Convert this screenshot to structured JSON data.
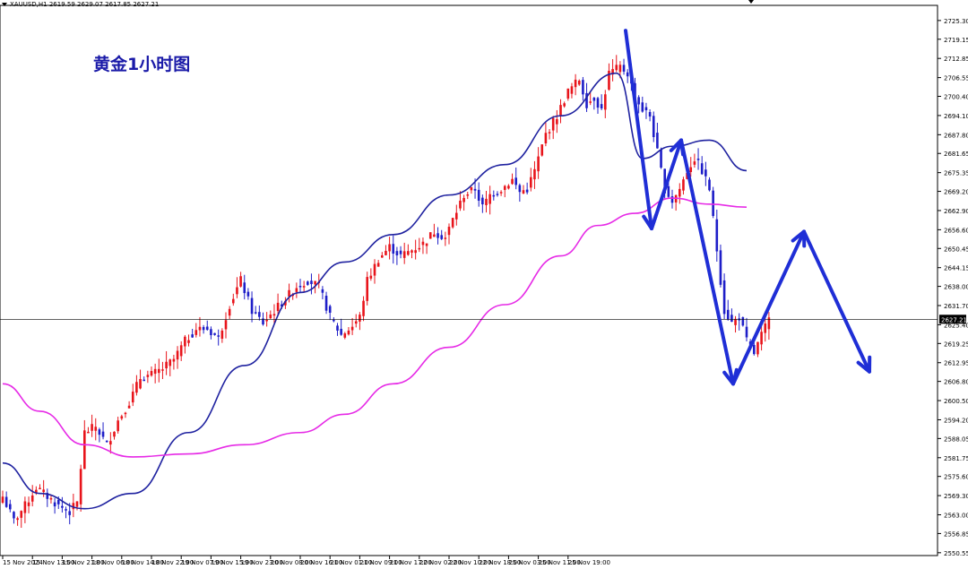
{
  "header": {
    "symbol_info": "XAUUSD,H1  2619.59 2629.07 2617.85 2627.21"
  },
  "annotation": {
    "title": "黄金1小时图"
  },
  "price_label": "2627.21",
  "colors": {
    "bull": "#e8141b",
    "bear": "#1e1ec8",
    "ma_fast": "#1f22a0",
    "ma_slow": "#e62ae6",
    "arrow": "#1f2ed6",
    "grid": "#000000"
  },
  "chart_data": {
    "type": "candlestick",
    "title": "黄金1小时图",
    "ylim": [
      2550.5,
      2728.5
    ],
    "y_ticks": [
      "2725.30",
      "2719.15",
      "2712.85",
      "2706.55",
      "2700.40",
      "2694.10",
      "2687.80",
      "2681.65",
      "2675.35",
      "2669.20",
      "2662.90",
      "2656.60",
      "2650.45",
      "2644.15",
      "2638.00",
      "2631.70",
      "2625.40",
      "2619.25",
      "2612.95",
      "2606.80",
      "2600.50",
      "2594.20",
      "2588.05",
      "2581.75",
      "2575.60",
      "2569.30",
      "2563.00",
      "2556.85",
      "2550.55"
    ],
    "x_ticks": [
      "15 Nov 2024",
      "15 Nov 13:00",
      "15 Nov 21:00",
      "18 Nov 06:00",
      "18 Nov 14:00",
      "18 Nov 22:00",
      "19 Nov 07:00",
      "19 Nov 15:00",
      "19 Nov 23:00",
      "20 Nov 08:00",
      "20 Nov 16:00",
      "21 Nov 01:00",
      "21 Nov 09:00",
      "21 Nov 17:00",
      "22 Nov 02:00",
      "22 Nov 10:00",
      "22 Nov 18:00",
      "25 Nov 03:00",
      "25 Nov 11:00",
      "25 Nov 19:00"
    ],
    "bars_per_label": 8,
    "ohlc_keypoints": [
      [
        0,
        2569
      ],
      [
        3,
        2561
      ],
      [
        6,
        2566
      ],
      [
        9,
        2572
      ],
      [
        12,
        2569
      ],
      [
        15,
        2566
      ],
      [
        18,
        2564
      ],
      [
        20,
        2567
      ],
      [
        22,
        2590
      ],
      [
        25,
        2592
      ],
      [
        28,
        2586
      ],
      [
        31,
        2594
      ],
      [
        34,
        2600
      ],
      [
        37,
        2608
      ],
      [
        40,
        2609
      ],
      [
        43,
        2611
      ],
      [
        46,
        2614
      ],
      [
        49,
        2620
      ],
      [
        52,
        2624
      ],
      [
        55,
        2624
      ],
      [
        58,
        2621
      ],
      [
        61,
        2632
      ],
      [
        64,
        2640
      ],
      [
        67,
        2630
      ],
      [
        70,
        2626
      ],
      [
        73,
        2630
      ],
      [
        76,
        2634
      ],
      [
        79,
        2638
      ],
      [
        82,
        2640
      ],
      [
        85,
        2638
      ],
      [
        88,
        2628
      ],
      [
        91,
        2622
      ],
      [
        94,
        2625
      ],
      [
        96,
        2628
      ],
      [
        98,
        2640
      ],
      [
        101,
        2647
      ],
      [
        104,
        2651
      ],
      [
        107,
        2648
      ],
      [
        110,
        2650
      ],
      [
        113,
        2652
      ],
      [
        116,
        2656
      ],
      [
        119,
        2654
      ],
      [
        121,
        2660
      ],
      [
        124,
        2668
      ],
      [
        127,
        2670
      ],
      [
        129,
        2664
      ],
      [
        131,
        2668
      ],
      [
        134,
        2670
      ],
      [
        137,
        2673
      ],
      [
        139,
        2669
      ],
      [
        141,
        2670
      ],
      [
        143,
        2676
      ],
      [
        146,
        2688
      ],
      [
        149,
        2694
      ],
      [
        152,
        2702
      ],
      [
        155,
        2706
      ],
      [
        157,
        2698
      ],
      [
        159,
        2700
      ],
      [
        161,
        2696
      ],
      [
        163,
        2708
      ],
      [
        166,
        2710
      ],
      [
        168,
        2708
      ],
      [
        170,
        2700
      ],
      [
        172,
        2696
      ],
      [
        174,
        2694
      ],
      [
        176,
        2682
      ],
      [
        178,
        2670
      ],
      [
        180,
        2666
      ],
      [
        182,
        2670
      ],
      [
        184,
        2676
      ],
      [
        186,
        2680
      ],
      [
        188,
        2676
      ],
      [
        190,
        2670
      ],
      [
        192,
        2650
      ],
      [
        194,
        2630
      ],
      [
        196,
        2626
      ],
      [
        198,
        2628
      ],
      [
        200,
        2620
      ],
      [
        202,
        2616
      ],
      [
        204,
        2622
      ],
      [
        206,
        2627
      ]
    ],
    "series": [
      {
        "name": "",
        "values": [
          [
            0,
            2580
          ],
          [
            10,
            2570
          ],
          [
            22,
            2565
          ],
          [
            35,
            2570
          ],
          [
            50,
            2590
          ],
          [
            65,
            2612
          ],
          [
            80,
            2636
          ],
          [
            92,
            2646
          ],
          [
            105,
            2655
          ],
          [
            120,
            2668
          ],
          [
            135,
            2678
          ],
          [
            150,
            2694
          ],
          [
            165,
            2708
          ],
          [
            172,
            2680
          ],
          [
            180,
            2684
          ],
          [
            190,
            2686
          ],
          [
            200,
            2676
          ]
        ]
      },
      {
        "name": "",
        "values": [
          [
            0,
            2606
          ],
          [
            10,
            2597
          ],
          [
            22,
            2586
          ],
          [
            35,
            2582
          ],
          [
            50,
            2583
          ],
          [
            65,
            2586
          ],
          [
            80,
            2590
          ],
          [
            92,
            2596
          ],
          [
            105,
            2606
          ],
          [
            120,
            2618
          ],
          [
            135,
            2632
          ],
          [
            150,
            2648
          ],
          [
            160,
            2658
          ],
          [
            170,
            2662
          ],
          [
            180,
            2667
          ],
          [
            190,
            2665
          ],
          [
            200,
            2664
          ]
        ]
      }
    ],
    "grid": false,
    "annotations": [
      {
        "kind": "arrow",
        "label": "",
        "points": [
          [
            2722,
            0
          ],
          [
            2657,
            1
          ]
        ]
      },
      {
        "kind": "arrow",
        "label": "",
        "points": [
          [
            2657,
            1
          ],
          [
            2686,
            2
          ]
        ]
      },
      {
        "kind": "arrow",
        "label": "",
        "points": [
          [
            2686,
            2
          ],
          [
            2606,
            3
          ]
        ]
      },
      {
        "kind": "arrow",
        "label": "",
        "points": [
          [
            2606,
            3
          ],
          [
            2656,
            4
          ]
        ]
      },
      {
        "kind": "arrow",
        "label": "",
        "points": [
          [
            2656,
            4
          ],
          [
            2610,
            5
          ]
        ]
      }
    ]
  }
}
